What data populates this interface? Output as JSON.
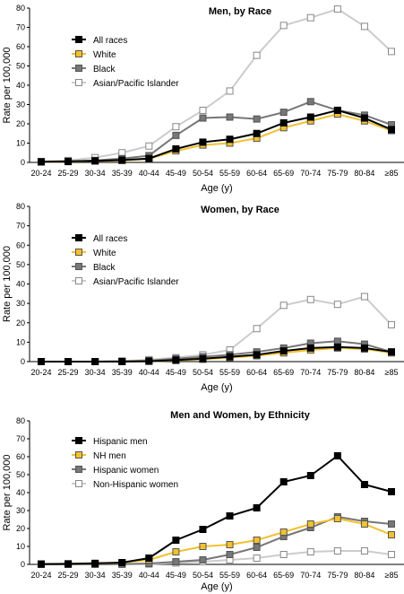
{
  "chart_data": [
    {
      "type": "line",
      "title": "Men, by Race",
      "xlabel": "Age (y)",
      "ylabel": "Rate per 100,000",
      "ylim": [
        0,
        80
      ],
      "yticks": [
        0,
        10,
        20,
        30,
        40,
        50,
        60,
        70,
        80
      ],
      "categories": [
        "20-24",
        "25-29",
        "30-34",
        "35-39",
        "40-44",
        "45-49",
        "50-54",
        "55-59",
        "60-64",
        "65-69",
        "70-74",
        "75-79",
        "80-84",
        "≥85"
      ],
      "legend_position": "top-left",
      "series": [
        {
          "name": "All races",
          "color": "#000000",
          "fill": "#000000",
          "values": [
            0.3,
            0.5,
            0.8,
            1.2,
            2.0,
            7.0,
            10.5,
            12.0,
            15.0,
            20.5,
            23.5,
            27.0,
            23.0,
            17.0
          ]
        },
        {
          "name": "White",
          "color": "#f2c12e",
          "fill": "#f2c12e",
          "values": [
            0.2,
            0.4,
            0.7,
            1.0,
            1.8,
            6.0,
            9.0,
            10.0,
            12.5,
            18.0,
            21.5,
            25.0,
            21.5,
            16.5
          ]
        },
        {
          "name": "Black",
          "color": "#777777",
          "fill": "#777777",
          "values": [
            0.3,
            0.5,
            1.0,
            2.0,
            3.5,
            14.0,
            23.0,
            23.5,
            22.5,
            26.0,
            31.5,
            27.0,
            24.5,
            19.5
          ]
        },
        {
          "name": "Asian/Pacific Islander",
          "color": "#cccccc",
          "fill": "#ffffff",
          "values": [
            0.5,
            1.0,
            2.5,
            5.0,
            8.5,
            18.5,
            27.0,
            37.0,
            55.5,
            71.0,
            75.0,
            79.5,
            70.5,
            57.5
          ]
        }
      ]
    },
    {
      "type": "line",
      "title": "Women, by Race",
      "xlabel": "Age (y)",
      "ylabel": "Rate per 100,000",
      "ylim": [
        0,
        80
      ],
      "yticks": [
        0,
        10,
        20,
        30,
        40,
        50,
        60,
        70,
        80
      ],
      "categories": [
        "20-24",
        "25-29",
        "30-34",
        "35-39",
        "40-44",
        "45-49",
        "50-54",
        "55-59",
        "60-64",
        "65-69",
        "70-74",
        "75-79",
        "80-84",
        "≥85"
      ],
      "legend_position": "top-left",
      "series": [
        {
          "name": "All races",
          "color": "#000000",
          "fill": "#000000",
          "values": [
            0.0,
            0.0,
            0.0,
            0.0,
            0.2,
            0.8,
            1.5,
            2.5,
            3.5,
            5.5,
            7.0,
            7.5,
            7.0,
            5.0
          ]
        },
        {
          "name": "White",
          "color": "#f2c12e",
          "fill": "#f2c12e",
          "values": [
            0.0,
            0.0,
            0.0,
            0.0,
            0.2,
            0.6,
            1.2,
            2.0,
            3.0,
            4.5,
            6.0,
            7.0,
            6.5,
            4.5
          ]
        },
        {
          "name": "Black",
          "color": "#777777",
          "fill": "#777777",
          "values": [
            0.0,
            0.0,
            0.0,
            0.2,
            0.5,
            1.5,
            2.5,
            3.5,
            5.0,
            7.0,
            9.5,
            10.5,
            9.0,
            5.0
          ]
        },
        {
          "name": "Asian/Pacific Islander",
          "color": "#cccccc",
          "fill": "#ffffff",
          "values": [
            0.0,
            0.0,
            0.0,
            0.3,
            1.0,
            2.0,
            3.5,
            6.0,
            17.0,
            29.0,
            32.0,
            29.5,
            33.5,
            19.0
          ]
        }
      ]
    },
    {
      "type": "line",
      "title": "Men and Women, by Ethnicity",
      "xlabel": "Age (y)",
      "ylabel": "Rate per 100,000",
      "ylim": [
        0,
        80
      ],
      "yticks": [
        0,
        10,
        20,
        30,
        40,
        50,
        60,
        70,
        80
      ],
      "categories": [
        "20-24",
        "25-29",
        "30-34",
        "35-39",
        "40-44",
        "45-49",
        "50-54",
        "55-59",
        "60-64",
        "65-69",
        "70-74",
        "75-79",
        "80-84",
        "≥85"
      ],
      "legend_position": "top-left",
      "series": [
        {
          "name": "Hispanic men",
          "color": "#000000",
          "fill": "#000000",
          "values": [
            0.2,
            0.3,
            0.6,
            1.0,
            3.5,
            13.5,
            19.5,
            27.0,
            31.5,
            46.0,
            49.5,
            60.5,
            44.5,
            40.5
          ]
        },
        {
          "name": "NH men",
          "color": "#f2c12e",
          "fill": "#f2c12e",
          "values": [
            0.2,
            0.3,
            0.5,
            1.0,
            2.5,
            7.0,
            10.0,
            11.0,
            13.5,
            18.0,
            22.5,
            25.5,
            22.5,
            16.5
          ]
        },
        {
          "name": "Hispanic women",
          "color": "#777777",
          "fill": "#777777",
          "values": [
            0.0,
            0.0,
            0.0,
            0.2,
            0.5,
            1.5,
            2.5,
            5.5,
            9.5,
            15.5,
            20.5,
            26.5,
            24.0,
            22.5
          ]
        },
        {
          "name": "Non-Hispanic women",
          "color": "#cccccc",
          "fill": "#ffffff",
          "values": [
            0.0,
            0.0,
            0.0,
            0.0,
            0.2,
            0.8,
            1.5,
            2.5,
            3.5,
            5.5,
            7.0,
            7.5,
            7.5,
            5.5
          ]
        }
      ]
    }
  ]
}
